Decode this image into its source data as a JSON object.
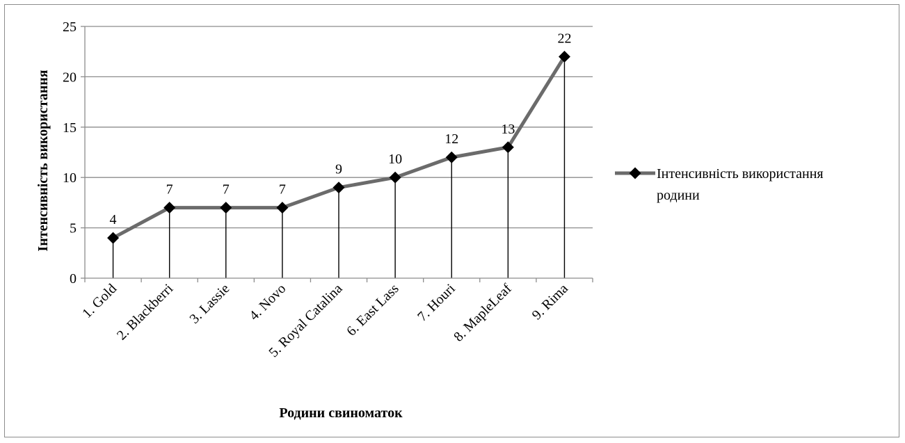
{
  "chart_data": {
    "type": "line",
    "categories": [
      "1. Gold",
      "2. Blackberri",
      "3. Lassie",
      "4. Novo",
      "5. Royal Catalina",
      "6. East Lass",
      "7. Houri",
      "8. MapleLeaf",
      "9. Rima"
    ],
    "series": [
      {
        "name": "Інтенсивність використання родини",
        "values": [
          4,
          7,
          7,
          7,
          9,
          10,
          12,
          13,
          22
        ]
      }
    ],
    "data_labels": [
      "4",
      "7",
      "7",
      "7",
      "9",
      "10",
      "12",
      "13",
      "22"
    ],
    "y_ticks": [
      "0",
      "5",
      "10",
      "15",
      "20",
      "25"
    ],
    "ylim": [
      0,
      25
    ],
    "xlabel": "Родини свиноматок",
    "ylabel": "Інтенсивність використання",
    "grid": true,
    "drop_lines": true,
    "legend": {
      "position": "right",
      "lines": [
        "Інтенсивність використання",
        "родини"
      ]
    },
    "colors": {
      "series_line": "#6b6b6b",
      "marker": "#000000",
      "grid": "#8c8c8c",
      "drop_line": "#000000",
      "frame": "#8c8c8c"
    }
  }
}
